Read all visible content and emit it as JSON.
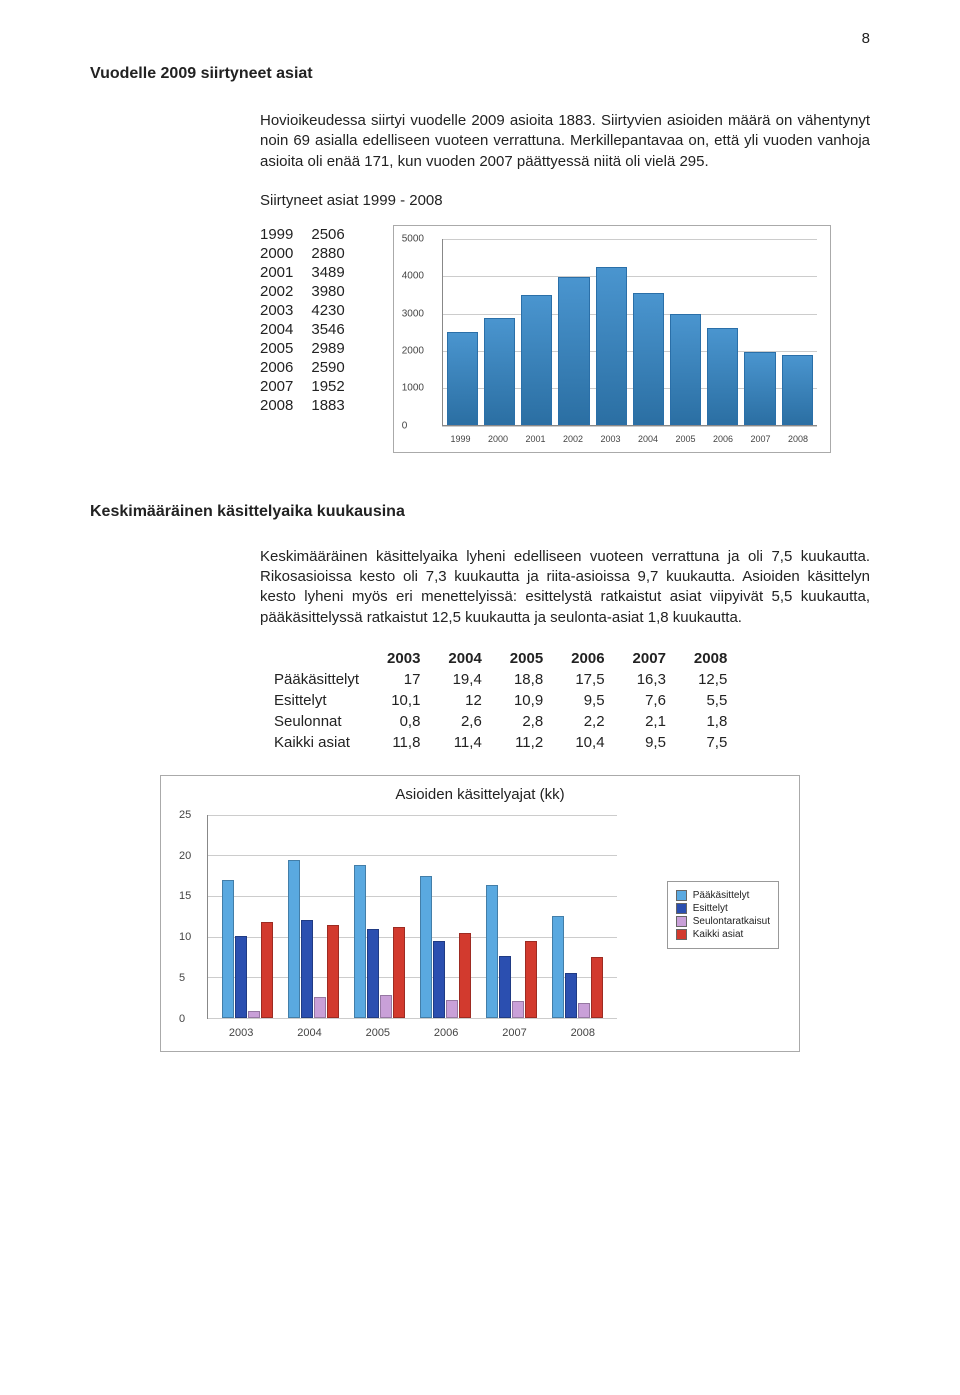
{
  "page_number": "8",
  "section1": {
    "title": "Vuodelle 2009 siirtyneet asiat",
    "para": "Hovioikeudessa siirtyi vuodelle 2009 asioita 1883. Siirtyvien asioiden määrä on vähentynyt noin 69 asialla edelliseen vuoteen verrattuna. Merkillepantavaa on, että yli vuoden vanhoja asioita oli enää 171, kun vuoden 2007 päättyessä niitä oli vielä 295.",
    "sub_title": "Siirtyneet asiat 1999 - 2008",
    "year_table": [
      [
        "1999",
        "2506"
      ],
      [
        "2000",
        "2880"
      ],
      [
        "2001",
        "3489"
      ],
      [
        "2002",
        "3980"
      ],
      [
        "2003",
        "4230"
      ],
      [
        "2004",
        "3546"
      ],
      [
        "2005",
        "2989"
      ],
      [
        "2006",
        "2590"
      ],
      [
        "2007",
        "1952"
      ],
      [
        "2008",
        "1883"
      ]
    ],
    "chart": {
      "type": "bar",
      "categories": [
        "1999",
        "2000",
        "2001",
        "2002",
        "2003",
        "2004",
        "2005",
        "2006",
        "2007",
        "2008"
      ],
      "values": [
        2506,
        2880,
        3489,
        3980,
        4230,
        3546,
        2989,
        2590,
        1952,
        1883
      ],
      "ylim": [
        0,
        5000
      ],
      "ytick_step": 1000,
      "bar_color": "#4a95cf",
      "grid_color": "#cccccc",
      "background_color": "#ffffff",
      "label_fontsize": 10
    }
  },
  "section2": {
    "title": "Keskimääräinen käsittelyaika kuukausina",
    "para": "Keskimääräinen käsittelyaika lyheni edelliseen vuoteen verrattuna ja oli 7,5 kuukautta. Rikosasioissa kesto oli 7,3 kuukautta ja riita-asioissa 9,7 kuukautta. Asioiden käsittelyn kesto lyheni myös eri menettelyissä: esittelystä ratkaistut asiat viipyivät 5,5 kuukautta, pääkäsittelyssä ratkaistut 12,5 kuukautta ja seulonta-asiat 1,8 kuukautta.",
    "table": {
      "years": [
        "2003",
        "2004",
        "2005",
        "2006",
        "2007",
        "2008"
      ],
      "rows": [
        {
          "label": "Pääkäsittelyt",
          "vals": [
            "17",
            "19,4",
            "18,8",
            "17,5",
            "16,3",
            "12,5"
          ]
        },
        {
          "label": "Esittelyt",
          "vals": [
            "10,1",
            "12",
            "10,9",
            "9,5",
            "7,6",
            "5,5"
          ]
        },
        {
          "label": "Seulonnat",
          "vals": [
            "0,8",
            "2,6",
            "2,8",
            "2,2",
            "2,1",
            "1,8"
          ]
        },
        {
          "label": "Kaikki asiat",
          "vals": [
            "11,8",
            "11,4",
            "11,2",
            "10,4",
            "9,5",
            "7,5"
          ]
        }
      ]
    },
    "chart": {
      "type": "grouped-bar",
      "title": "Asioiden käsittelyajat (kk)",
      "categories": [
        "2003",
        "2004",
        "2005",
        "2006",
        "2007",
        "2008"
      ],
      "series": [
        {
          "name": "Pääkäsittelyt",
          "color": "#5aa9e0",
          "values": [
            17,
            19.4,
            18.8,
            17.5,
            16.3,
            12.5
          ]
        },
        {
          "name": "Esittelyt",
          "color": "#2b4fb0",
          "values": [
            10.1,
            12,
            10.9,
            9.5,
            7.6,
            5.5
          ]
        },
        {
          "name": "Seulontaratkaisut",
          "color": "#c9a0d8",
          "values": [
            0.8,
            2.6,
            2.8,
            2.2,
            2.1,
            1.8
          ]
        },
        {
          "name": "Kaikki asiat",
          "color": "#d23a2e",
          "values": [
            11.8,
            11.4,
            11.2,
            10.4,
            9.5,
            7.5
          ]
        }
      ],
      "ylim": [
        0,
        25
      ],
      "ytick_step": 5,
      "grid_color": "#cccccc",
      "background_color": "#ffffff",
      "label_fontsize": 11
    }
  }
}
